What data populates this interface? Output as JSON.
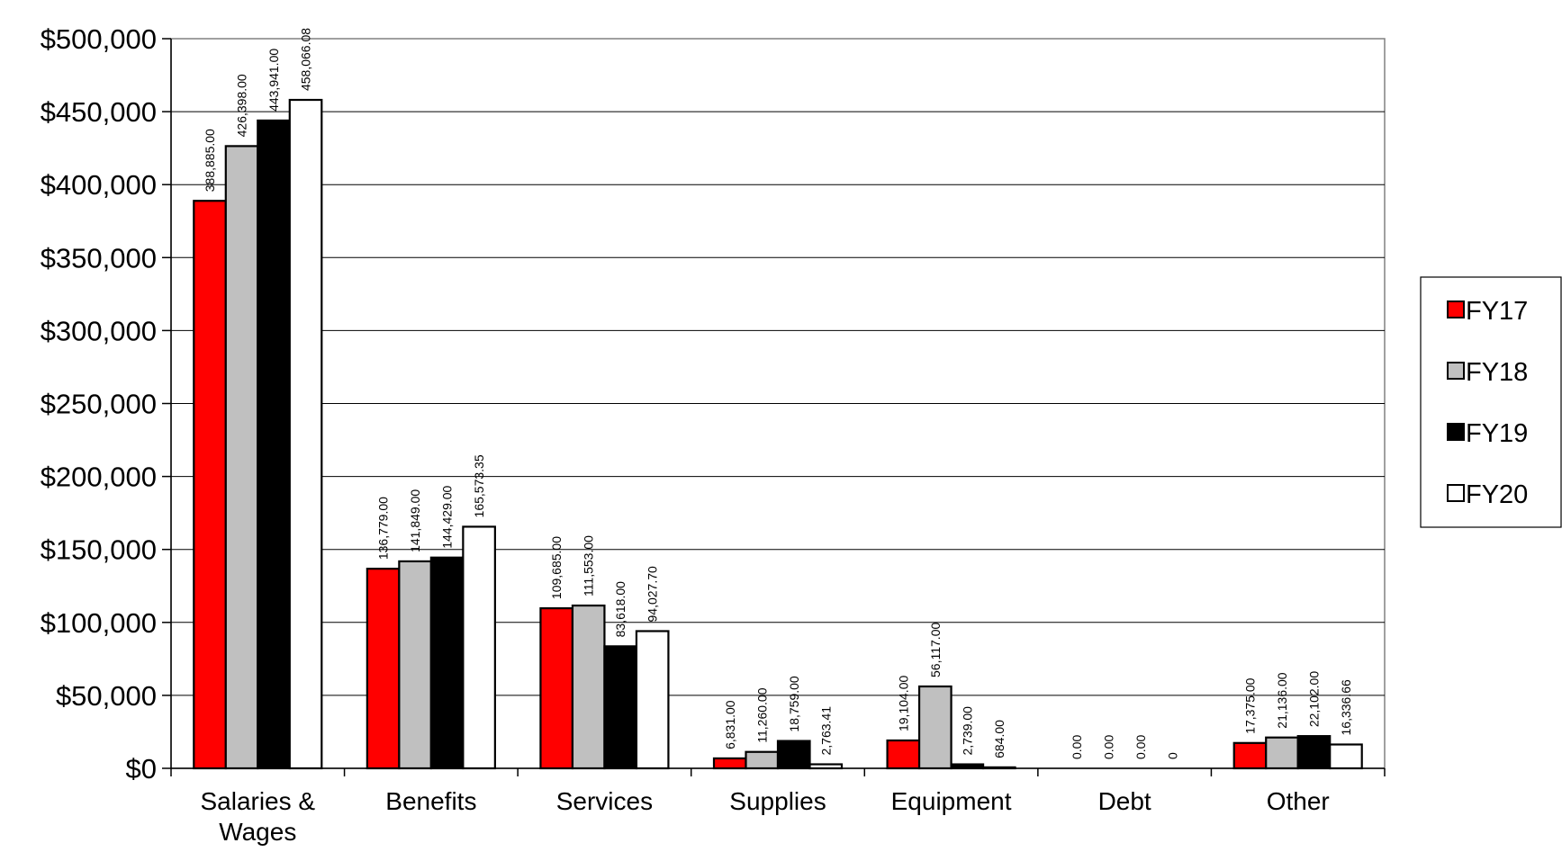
{
  "chart_data": {
    "type": "bar",
    "title": "",
    "xlabel": "",
    "ylabel": "",
    "ylim": [
      0,
      500000
    ],
    "yticks": [
      0,
      50000,
      100000,
      150000,
      200000,
      250000,
      300000,
      350000,
      400000,
      450000,
      500000
    ],
    "ytick_labels": [
      "$0",
      "$50,000",
      "$100,000",
      "$150,000",
      "$200,000",
      "$250,000",
      "$300,000",
      "$350,000",
      "$400,000",
      "$450,000",
      "$500,000"
    ],
    "grid": true,
    "legend_position": "right",
    "categories": [
      [
        "Salaries &",
        "Wages"
      ],
      [
        "Benefits"
      ],
      [
        "Services"
      ],
      [
        "Supplies"
      ],
      [
        "Equipment"
      ],
      [
        "Debt"
      ],
      [
        "Other"
      ]
    ],
    "series": [
      {
        "name": "FY17",
        "color": "#ff0000",
        "values": [
          388885,
          136779,
          109685,
          6831,
          19104,
          0,
          17375
        ],
        "labels": [
          "388,885.00",
          "136,779.00",
          "109,685.00",
          "6,831.00",
          "19,104.00",
          "0.00",
          "17,375.00"
        ]
      },
      {
        "name": "FY18",
        "color": "#c0c0c0",
        "values": [
          426398,
          141849,
          111553,
          11260,
          56117,
          0,
          21136
        ],
        "labels": [
          "426,398.00",
          "141,849.00",
          "111,553.00",
          "11,260.00",
          "56,117.00",
          "0.00",
          "21,136.00"
        ]
      },
      {
        "name": "FY19",
        "color": "#000000",
        "values": [
          443941,
          144429,
          83618,
          18759,
          2739,
          0,
          22102
        ],
        "labels": [
          "443,941.00",
          "144,429.00",
          "83,618.00",
          "18,759.00",
          "2,739.00",
          "0.00",
          "22,102.00"
        ]
      },
      {
        "name": "FY20",
        "color": "#ffffff",
        "values": [
          458066.08,
          165573.35,
          94027.7,
          2763.41,
          684,
          0,
          16336.66
        ],
        "labels": [
          "458,066.08",
          "165,573.35",
          "94,027.70",
          "2,763.41",
          "684.00",
          "0",
          "16,336.66"
        ]
      }
    ]
  }
}
